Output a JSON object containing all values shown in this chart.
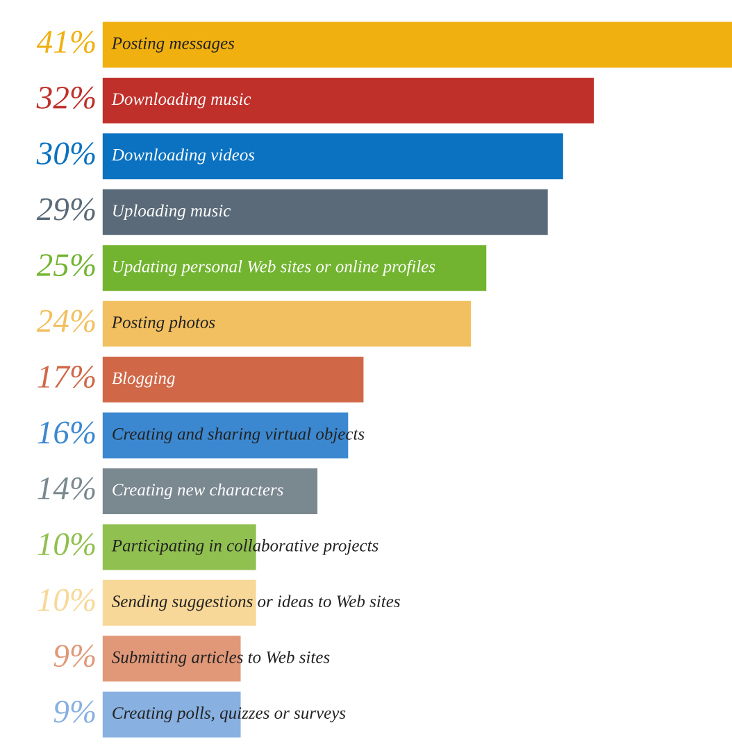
{
  "chart_data": {
    "type": "bar",
    "orientation": "horizontal",
    "categories": [
      "Posting messages",
      "Downloading music",
      "Downloading videos",
      "Uploading music",
      "Updating personal Web sites or online profiles",
      "Posting photos",
      "Blogging",
      "Creating and sharing virtual objects",
      "Creating new characters",
      "Participating in collaborative projects",
      "Sending suggestions or ideas to Web sites",
      "Submitting articles to Web sites",
      "Creating polls, quizzes or surveys"
    ],
    "values": [
      41,
      32,
      30,
      29,
      25,
      24,
      17,
      16,
      14,
      10,
      10,
      9,
      9
    ],
    "value_labels": [
      "41%",
      "32%",
      "30%",
      "29%",
      "25%",
      "24%",
      "17%",
      "16%",
      "14%",
      "10%",
      "10%",
      "9%",
      "9%"
    ],
    "colors": [
      "#f0b010",
      "#c0302a",
      "#0a72c0",
      "#5a6a78",
      "#72b430",
      "#f2c060",
      "#d06848",
      "#3c88d0",
      "#7a8890",
      "#90c050",
      "#f8d898",
      "#e09878",
      "#88b0e0"
    ],
    "legend": false
  }
}
